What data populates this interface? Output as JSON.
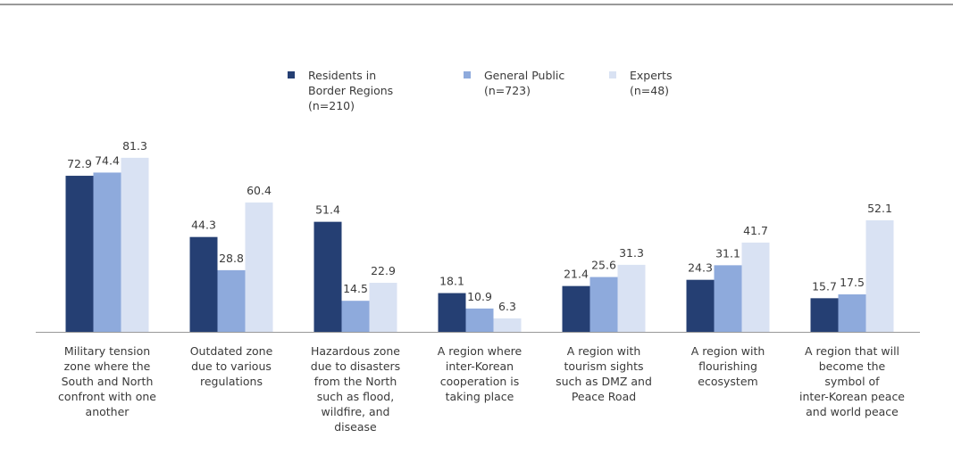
{
  "chart_data": {
    "type": "bar",
    "categories": [
      "Military tension zone where the South and North confront with one another",
      "Outdated zone due to various regulations",
      "Hazardous zone due to disasters from the North such as flood, wildfire, and disease",
      "A region where inter-Korean cooperation is taking place",
      "A region with tourism sights such as DMZ and Peace Road",
      "A region with flourishing ecosystem",
      "A region that will become the symbol of inter-Korean peace and world peace"
    ],
    "series": [
      {
        "name": "Residents in Border Regions (n=210)",
        "color": "#253f73",
        "values": [
          72.9,
          44.3,
          51.4,
          18.1,
          21.4,
          24.3,
          15.7
        ]
      },
      {
        "name": "General Public (n=723)",
        "color": "#8eaadc",
        "values": [
          74.4,
          28.8,
          14.5,
          10.9,
          25.6,
          31.1,
          17.5
        ]
      },
      {
        "name": "Experts (n=48)",
        "color": "#d9e2f3",
        "values": [
          81.3,
          60.4,
          22.9,
          6.3,
          31.3,
          41.7,
          52.1
        ]
      }
    ]
  }
}
